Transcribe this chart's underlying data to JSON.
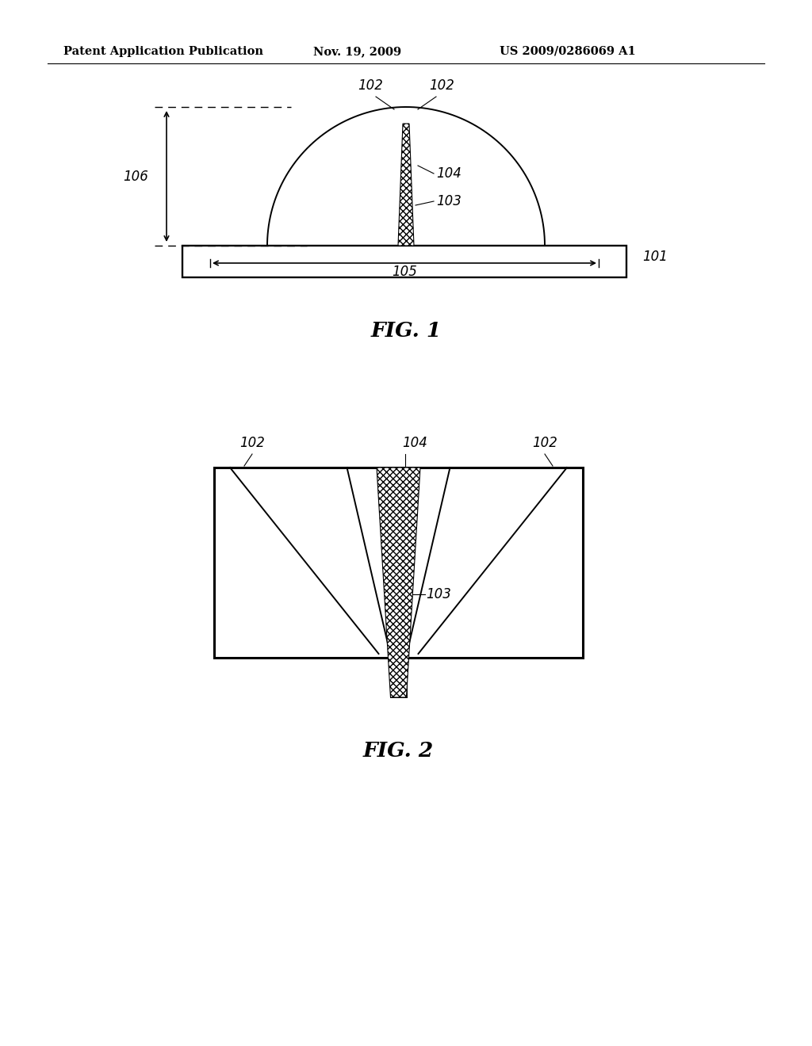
{
  "bg_color": "#ffffff",
  "header_left": "Patent Application Publication",
  "header_mid": "Nov. 19, 2009",
  "header_right": "US 2009/0286069 A1",
  "fig1_caption": "FIG. 1",
  "fig2_caption": "FIG. 2",
  "label_101": "101",
  "label_102": "102",
  "label_103": "103",
  "label_104": "104",
  "label_105": "105",
  "label_106": "106"
}
